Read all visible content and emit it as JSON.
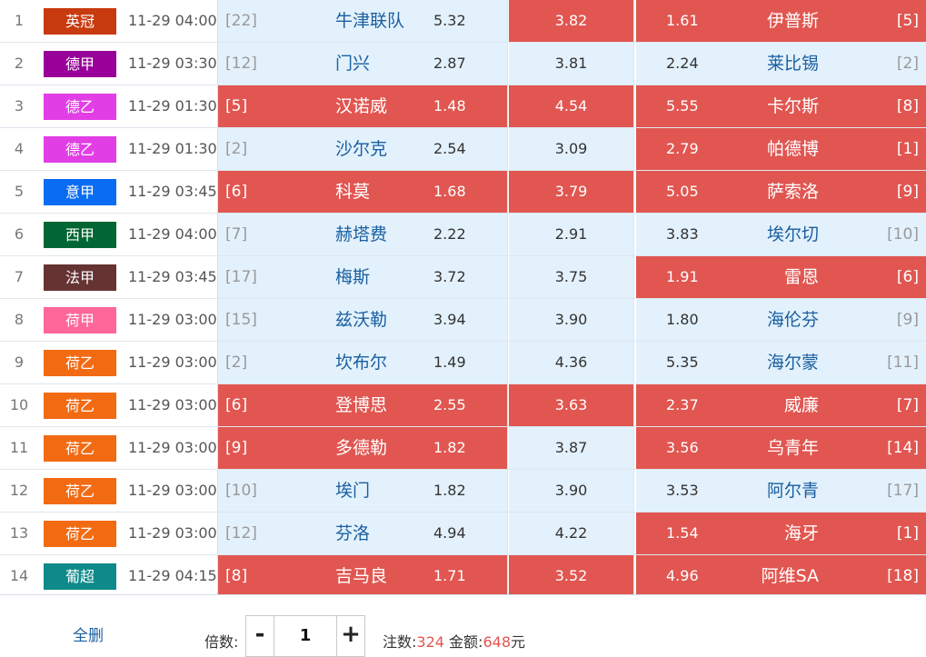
{
  "colors": {
    "selected": "#e15651",
    "unselected": "#e3f1fc",
    "team_text": "#1a5fa0",
    "highlight_number": "#e15651"
  },
  "matches": [
    {
      "index": "1",
      "league": "英冠",
      "league_color": "#c83a0f",
      "time": "11-29 04:00",
      "home_rank": "[22]",
      "home_team": "牛津联队",
      "home_odds": "5.32",
      "draw_odds": "3.82",
      "away_odds": "1.61",
      "away_team": "伊普斯",
      "away_rank": "[5]",
      "sel": {
        "home": false,
        "draw": true,
        "away": true
      }
    },
    {
      "index": "2",
      "league": "德甲",
      "league_color": "#990099",
      "time": "11-29 03:30",
      "home_rank": "[12]",
      "home_team": "门兴",
      "home_odds": "2.87",
      "draw_odds": "3.81",
      "away_odds": "2.24",
      "away_team": "莱比锡",
      "away_rank": "[2]",
      "sel": {
        "home": false,
        "draw": false,
        "away": false
      }
    },
    {
      "index": "3",
      "league": "德乙",
      "league_color": "#e23ee6",
      "time": "11-29 01:30",
      "home_rank": "[5]",
      "home_team": "汉诺威",
      "home_odds": "1.48",
      "draw_odds": "4.54",
      "away_odds": "5.55",
      "away_team": "卡尔斯",
      "away_rank": "[8]",
      "sel": {
        "home": true,
        "draw": true,
        "away": true
      }
    },
    {
      "index": "4",
      "league": "德乙",
      "league_color": "#e23ee6",
      "time": "11-29 01:30",
      "home_rank": "[2]",
      "home_team": "沙尔克",
      "home_odds": "2.54",
      "draw_odds": "3.09",
      "away_odds": "2.79",
      "away_team": "帕德博",
      "away_rank": "[1]",
      "sel": {
        "home": false,
        "draw": false,
        "away": true
      }
    },
    {
      "index": "5",
      "league": "意甲",
      "league_color": "#0a6cf2",
      "time": "11-29 03:45",
      "home_rank": "[6]",
      "home_team": "科莫",
      "home_odds": "1.68",
      "draw_odds": "3.79",
      "away_odds": "5.05",
      "away_team": "萨索洛",
      "away_rank": "[9]",
      "sel": {
        "home": true,
        "draw": true,
        "away": true
      }
    },
    {
      "index": "6",
      "league": "西甲",
      "league_color": "#006633",
      "time": "11-29 04:00",
      "home_rank": "[7]",
      "home_team": "赫塔费",
      "home_odds": "2.22",
      "draw_odds": "2.91",
      "away_odds": "3.83",
      "away_team": "埃尔切",
      "away_rank": "[10]",
      "sel": {
        "home": false,
        "draw": false,
        "away": false
      }
    },
    {
      "index": "7",
      "league": "法甲",
      "league_color": "#663333",
      "time": "11-29 03:45",
      "home_rank": "[17]",
      "home_team": "梅斯",
      "home_odds": "3.72",
      "draw_odds": "3.75",
      "away_odds": "1.91",
      "away_team": "雷恩",
      "away_rank": "[6]",
      "sel": {
        "home": false,
        "draw": false,
        "away": true
      }
    },
    {
      "index": "8",
      "league": "荷甲",
      "league_color": "#ff6699",
      "time": "11-29 03:00",
      "home_rank": "[15]",
      "home_team": "兹沃勒",
      "home_odds": "3.94",
      "draw_odds": "3.90",
      "away_odds": "1.80",
      "away_team": "海伦芬",
      "away_rank": "[9]",
      "sel": {
        "home": false,
        "draw": false,
        "away": false
      }
    },
    {
      "index": "9",
      "league": "荷乙",
      "league_color": "#f26b13",
      "time": "11-29 03:00",
      "home_rank": "[2]",
      "home_team": "坎布尔",
      "home_odds": "1.49",
      "draw_odds": "4.36",
      "away_odds": "5.35",
      "away_team": "海尔蒙",
      "away_rank": "[11]",
      "sel": {
        "home": false,
        "draw": false,
        "away": false
      }
    },
    {
      "index": "10",
      "league": "荷乙",
      "league_color": "#f26b13",
      "time": "11-29 03:00",
      "home_rank": "[6]",
      "home_team": "登博思",
      "home_odds": "2.55",
      "draw_odds": "3.63",
      "away_odds": "2.37",
      "away_team": "威廉",
      "away_rank": "[7]",
      "sel": {
        "home": true,
        "draw": true,
        "away": true
      }
    },
    {
      "index": "11",
      "league": "荷乙",
      "league_color": "#f26b13",
      "time": "11-29 03:00",
      "home_rank": "[9]",
      "home_team": "多德勒",
      "home_odds": "1.82",
      "draw_odds": "3.87",
      "away_odds": "3.56",
      "away_team": "乌青年",
      "away_rank": "[14]",
      "sel": {
        "home": true,
        "draw": false,
        "away": true
      }
    },
    {
      "index": "12",
      "league": "荷乙",
      "league_color": "#f26b13",
      "time": "11-29 03:00",
      "home_rank": "[10]",
      "home_team": "埃门",
      "home_odds": "1.82",
      "draw_odds": "3.90",
      "away_odds": "3.53",
      "away_team": "阿尔青",
      "away_rank": "[17]",
      "sel": {
        "home": false,
        "draw": false,
        "away": false
      }
    },
    {
      "index": "13",
      "league": "荷乙",
      "league_color": "#f26b13",
      "time": "11-29 03:00",
      "home_rank": "[12]",
      "home_team": "芬洛",
      "home_odds": "4.94",
      "draw_odds": "4.22",
      "away_odds": "1.54",
      "away_team": "海牙",
      "away_rank": "[1]",
      "sel": {
        "home": false,
        "draw": false,
        "away": true
      }
    },
    {
      "index": "14",
      "league": "葡超",
      "league_color": "#0f8a8a",
      "time": "11-29 04:15",
      "home_rank": "[8]",
      "home_team": "吉马良",
      "home_odds": "1.71",
      "draw_odds": "3.52",
      "away_odds": "4.96",
      "away_team": "阿维SA",
      "away_rank": "[18]",
      "sel": {
        "home": true,
        "draw": true,
        "away": true
      }
    }
  ],
  "footer": {
    "clear_label": "全删",
    "multiplier_label": "倍数:",
    "minus_label": "-",
    "plus_label": "+",
    "multiplier_value": "1",
    "bets_label": "注数:",
    "bets_value": "324",
    "amount_label": "金额:",
    "amount_value": "648",
    "amount_unit": "元"
  }
}
